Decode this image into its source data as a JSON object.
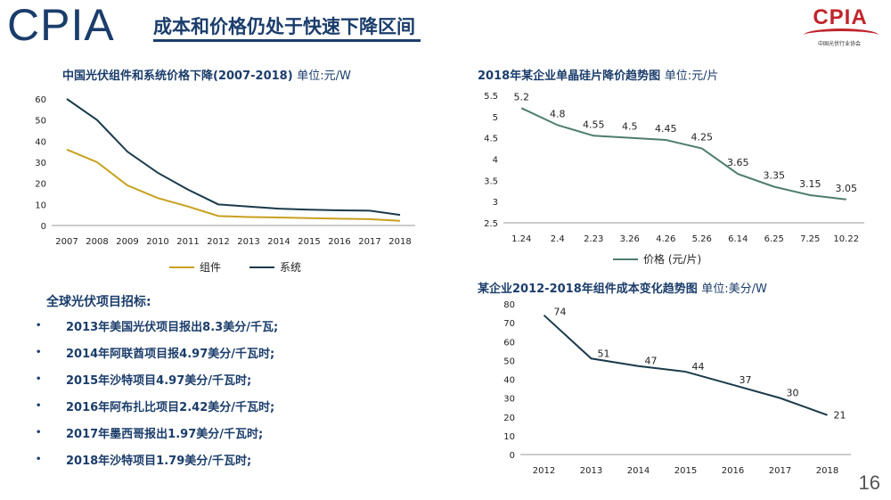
{
  "header": {
    "logo": "CPIA",
    "title": "成本和价格仍处于快速下降区间",
    "brand_mark": "CPIA",
    "brand_sub": "中国光伏行业协会"
  },
  "page_number": "16",
  "bids": {
    "heading": "全球光伏项目招标:",
    "items": [
      "2013年美国光伏项目报出8.3美分/千瓦;",
      "2014年阿联酋项目报4.97美分/千瓦时;",
      "2015年沙特项目4.97美分/千瓦时;",
      "2016年阿布扎比项目2.42美分/千瓦时;",
      "2017年墨西哥报出1.97美分/千瓦时;",
      "2018年沙特项目1.79美分/千瓦时;"
    ]
  },
  "chart_titles": {
    "c1_main": "中国光伏组件和系统价格下降(2007-2018)",
    "c1_unit": "单位:元/W",
    "c2_main": "2018年某企业单晶硅片降价趋势图",
    "c2_unit": "单位:元/片",
    "c3_main": "某企业2012-2018年组件成本变化趋势图",
    "c3_unit": "单位:美分/W"
  },
  "chart_data": [
    {
      "type": "line",
      "title": "中国光伏组件和系统价格下降(2007-2018) 单位:元/W",
      "categories": [
        "2007",
        "2008",
        "2009",
        "2010",
        "2011",
        "2012",
        "2013",
        "2014",
        "2015",
        "2016",
        "2017",
        "2018"
      ],
      "series": [
        {
          "name": "组件",
          "color": "#c8a01e",
          "values": [
            36,
            30,
            19,
            13,
            9,
            4.5,
            4,
            3.8,
            3.5,
            3.2,
            3,
            2.2
          ]
        },
        {
          "name": "系统",
          "color": "#1a3a4a",
          "values": [
            60,
            50,
            35,
            25,
            17,
            10,
            9,
            8,
            7.5,
            7.2,
            7,
            5
          ]
        }
      ],
      "ylim": [
        0,
        60
      ],
      "yticks": [
        0,
        10,
        20,
        30,
        40,
        50,
        60
      ],
      "grid": false,
      "legend": "bottom"
    },
    {
      "type": "line",
      "title": "2018年某企业单晶硅片降价趋势图 单位:元/片",
      "categories": [
        "1.24",
        "2.4",
        "2.23",
        "3.26",
        "4.26",
        "5.26",
        "6.14",
        "6.25",
        "7.25",
        "10.22"
      ],
      "series": [
        {
          "name": "价格 (元/片)",
          "color": "#4e7d6c",
          "values": [
            5.2,
            4.8,
            4.55,
            4.5,
            4.45,
            4.25,
            3.65,
            3.35,
            3.15,
            3.05
          ]
        }
      ],
      "data_labels": [
        "5.2",
        "4.8",
        "4.55",
        "4.5",
        "4.45",
        "4.25",
        "3.65",
        "3.35",
        "3.15",
        "3.05"
      ],
      "ylim": [
        2.5,
        5.5
      ],
      "yticks": [
        "2.5",
        "3",
        "3.5",
        "4",
        "4.5",
        "5",
        "5.5"
      ],
      "grid": false,
      "legend": "bottom"
    },
    {
      "type": "line",
      "title": "某企业2012-2018年组件成本变化趋势图 单位:美分/W",
      "categories": [
        "2012",
        "2013",
        "2014",
        "2015",
        "2016",
        "2017",
        "2018"
      ],
      "series": [
        {
          "color": "#1a3a4a",
          "values": [
            74,
            51,
            47,
            44,
            37,
            30,
            21
          ]
        }
      ],
      "data_labels": [
        "74",
        "51",
        "47",
        "44",
        "37",
        "30",
        "21"
      ],
      "ylim": [
        0,
        80
      ],
      "yticks": [
        0,
        10,
        20,
        30,
        40,
        50,
        60,
        70,
        80
      ],
      "grid": false
    }
  ]
}
